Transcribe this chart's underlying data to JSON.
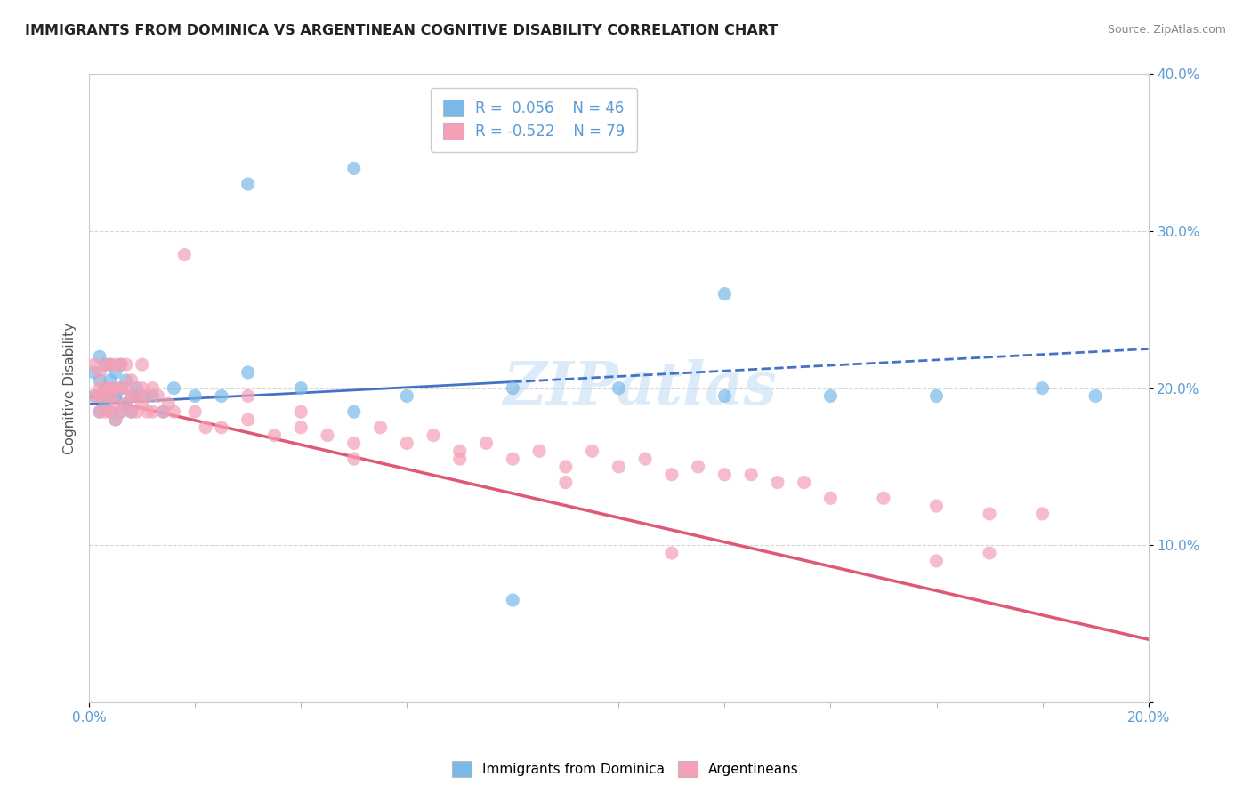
{
  "title": "IMMIGRANTS FROM DOMINICA VS ARGENTINEAN COGNITIVE DISABILITY CORRELATION CHART",
  "source": "Source: ZipAtlas.com",
  "ylabel": "Cognitive Disability",
  "legend_series1": "Immigrants from Dominica",
  "legend_series2": "Argentineans",
  "r1": 0.056,
  "n1": 46,
  "r2": -0.522,
  "n2": 79,
  "color1": "#7ab8e8",
  "color2": "#f5a0b5",
  "trendline1_color": "#4472c4",
  "trendline2_color": "#e05878",
  "xlim": [
    0.0,
    0.2
  ],
  "ylim": [
    0.0,
    0.4
  ],
  "background_color": "#ffffff",
  "watermark": "ZIPatlas",
  "series1_x": [
    0.001,
    0.001,
    0.002,
    0.002,
    0.002,
    0.003,
    0.003,
    0.003,
    0.003,
    0.004,
    0.004,
    0.004,
    0.005,
    0.005,
    0.005,
    0.005,
    0.006,
    0.006,
    0.006,
    0.007,
    0.007,
    0.008,
    0.008,
    0.009,
    0.009,
    0.01,
    0.012,
    0.014,
    0.016,
    0.02,
    0.025,
    0.03,
    0.04,
    0.05,
    0.06,
    0.08,
    0.1,
    0.12,
    0.14,
    0.16,
    0.18,
    0.19,
    0.03,
    0.05,
    0.12,
    0.08
  ],
  "series1_y": [
    0.195,
    0.21,
    0.185,
    0.205,
    0.22,
    0.19,
    0.2,
    0.215,
    0.195,
    0.185,
    0.205,
    0.215,
    0.18,
    0.195,
    0.21,
    0.195,
    0.185,
    0.2,
    0.215,
    0.19,
    0.205,
    0.185,
    0.195,
    0.195,
    0.2,
    0.195,
    0.195,
    0.185,
    0.2,
    0.195,
    0.195,
    0.21,
    0.2,
    0.185,
    0.195,
    0.2,
    0.2,
    0.195,
    0.195,
    0.195,
    0.2,
    0.195,
    0.33,
    0.34,
    0.26,
    0.065
  ],
  "series2_x": [
    0.001,
    0.001,
    0.002,
    0.002,
    0.002,
    0.002,
    0.003,
    0.003,
    0.003,
    0.003,
    0.004,
    0.004,
    0.004,
    0.004,
    0.005,
    0.005,
    0.005,
    0.005,
    0.006,
    0.006,
    0.006,
    0.007,
    0.007,
    0.007,
    0.008,
    0.008,
    0.008,
    0.009,
    0.009,
    0.01,
    0.01,
    0.01,
    0.011,
    0.011,
    0.012,
    0.012,
    0.013,
    0.014,
    0.015,
    0.016,
    0.018,
    0.02,
    0.022,
    0.025,
    0.03,
    0.03,
    0.035,
    0.04,
    0.04,
    0.045,
    0.05,
    0.055,
    0.06,
    0.065,
    0.07,
    0.075,
    0.08,
    0.085,
    0.09,
    0.095,
    0.1,
    0.105,
    0.11,
    0.115,
    0.12,
    0.125,
    0.13,
    0.135,
    0.14,
    0.15,
    0.16,
    0.17,
    0.18,
    0.05,
    0.07,
    0.09,
    0.11,
    0.16,
    0.17
  ],
  "series2_y": [
    0.195,
    0.215,
    0.185,
    0.2,
    0.21,
    0.195,
    0.185,
    0.195,
    0.215,
    0.2,
    0.185,
    0.2,
    0.215,
    0.195,
    0.18,
    0.2,
    0.215,
    0.19,
    0.185,
    0.2,
    0.215,
    0.19,
    0.2,
    0.215,
    0.185,
    0.195,
    0.205,
    0.185,
    0.195,
    0.19,
    0.2,
    0.215,
    0.185,
    0.195,
    0.185,
    0.2,
    0.195,
    0.185,
    0.19,
    0.185,
    0.285,
    0.185,
    0.175,
    0.175,
    0.18,
    0.195,
    0.17,
    0.175,
    0.185,
    0.17,
    0.165,
    0.175,
    0.165,
    0.17,
    0.16,
    0.165,
    0.155,
    0.16,
    0.15,
    0.16,
    0.15,
    0.155,
    0.145,
    0.15,
    0.145,
    0.145,
    0.14,
    0.14,
    0.13,
    0.13,
    0.125,
    0.12,
    0.12,
    0.155,
    0.155,
    0.14,
    0.095,
    0.09,
    0.095
  ],
  "trendline1_x0": 0.0,
  "trendline1_y0": 0.19,
  "trendline1_x1": 0.2,
  "trendline1_y1": 0.225,
  "trendline2_x0": 0.0,
  "trendline2_y0": 0.195,
  "trendline2_x1": 0.2,
  "trendline2_y1": 0.04
}
